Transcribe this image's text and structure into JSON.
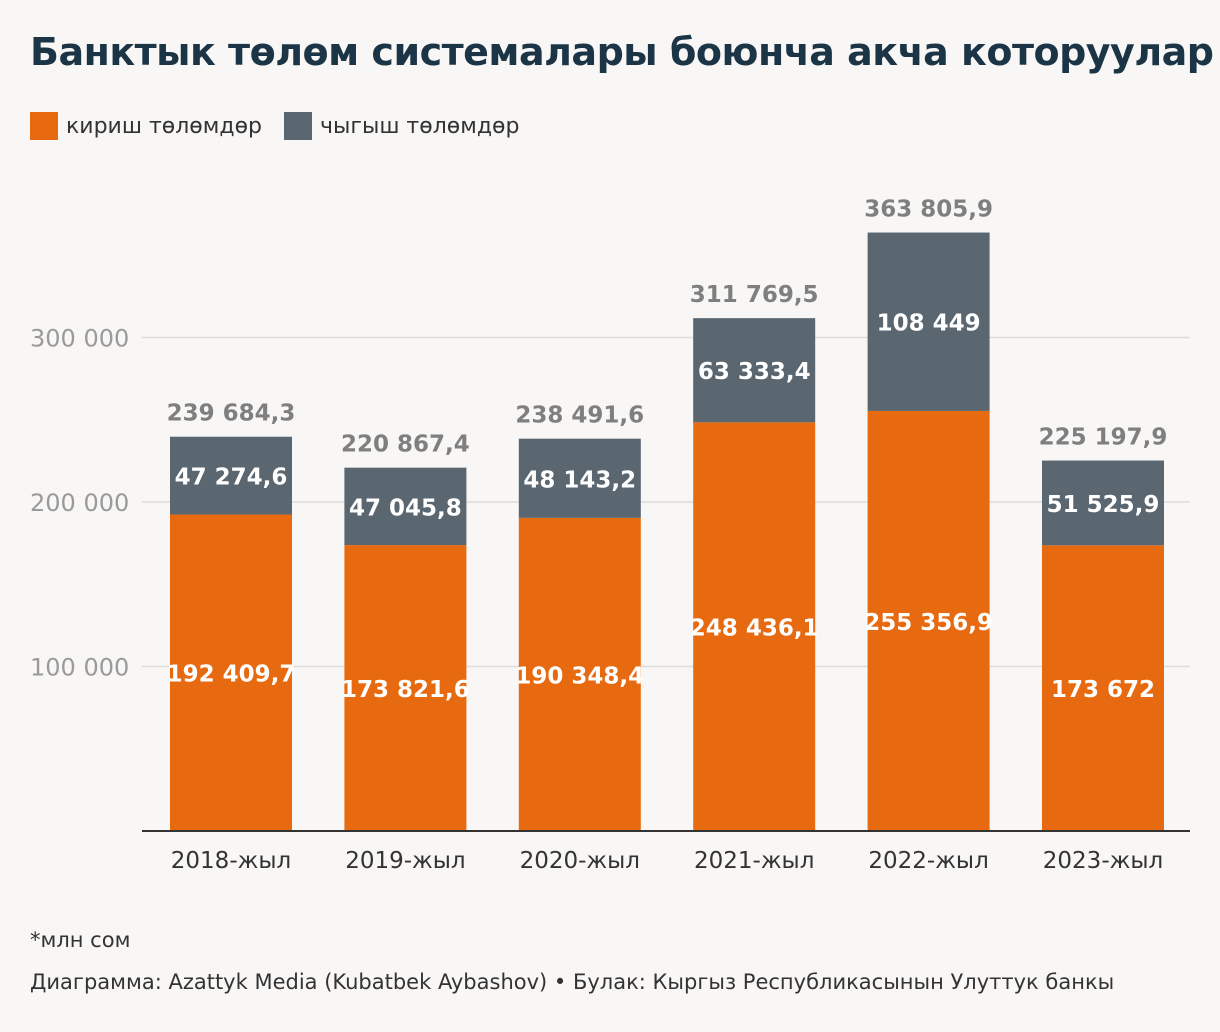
{
  "title": "Банктык төлөм системалары боюнча акча которуулар",
  "legend": [
    {
      "label": "кириш төлөмдөр",
      "color": "#e86a10"
    },
    {
      "label": "чыгыш төлөмдөр",
      "color": "#5a6670"
    }
  ],
  "footnote": "*млн сом",
  "credit": "Диаграмма: Azattyk Media (Kubatbek Aybashov) • Булак: Кыргыз Республикасынын Улуттук банкы",
  "chart_data": {
    "type": "bar",
    "stacked": true,
    "title": "Банктык төлөм системалары боюнча акча которуулар",
    "categories": [
      "2018-жыл",
      "2019-жыл",
      "2020-жыл",
      "2021-жыл",
      "2022-жыл",
      "2023-жыл"
    ],
    "series": [
      {
        "name": "кириш төлөмдөр",
        "color": "#e86a10",
        "values": [
          192409.7,
          173821.6,
          190348.4,
          248436.1,
          255356.9,
          173672
        ],
        "labels": [
          "192 409,7",
          "173 821,6",
          "190 348,4",
          "248 436,1",
          "255 356,9",
          "173 672"
        ]
      },
      {
        "name": "чыгыш төлөмдөр",
        "color": "#5a6670",
        "values": [
          47274.6,
          47045.8,
          48143.2,
          63333.4,
          108449,
          51525.9
        ],
        "labels": [
          "47 274,6",
          "47 045,8",
          "48 143,2",
          "63 333,4",
          "108 449",
          "51 525,9"
        ]
      }
    ],
    "totals": [
      239684.3,
      220867.4,
      238491.6,
      311769.5,
      363805.9,
      225197.9
    ],
    "total_labels": [
      "239 684,3",
      "220 867,4",
      "238 491,6",
      "311 769,5",
      "363 805,9",
      "225 197,9"
    ],
    "yticks": [
      100000,
      200000,
      300000
    ],
    "ytick_labels": [
      "100 000",
      "200 000",
      "300 000"
    ],
    "ylim": [
      0,
      380000
    ],
    "xlabel": "",
    "ylabel": ""
  }
}
